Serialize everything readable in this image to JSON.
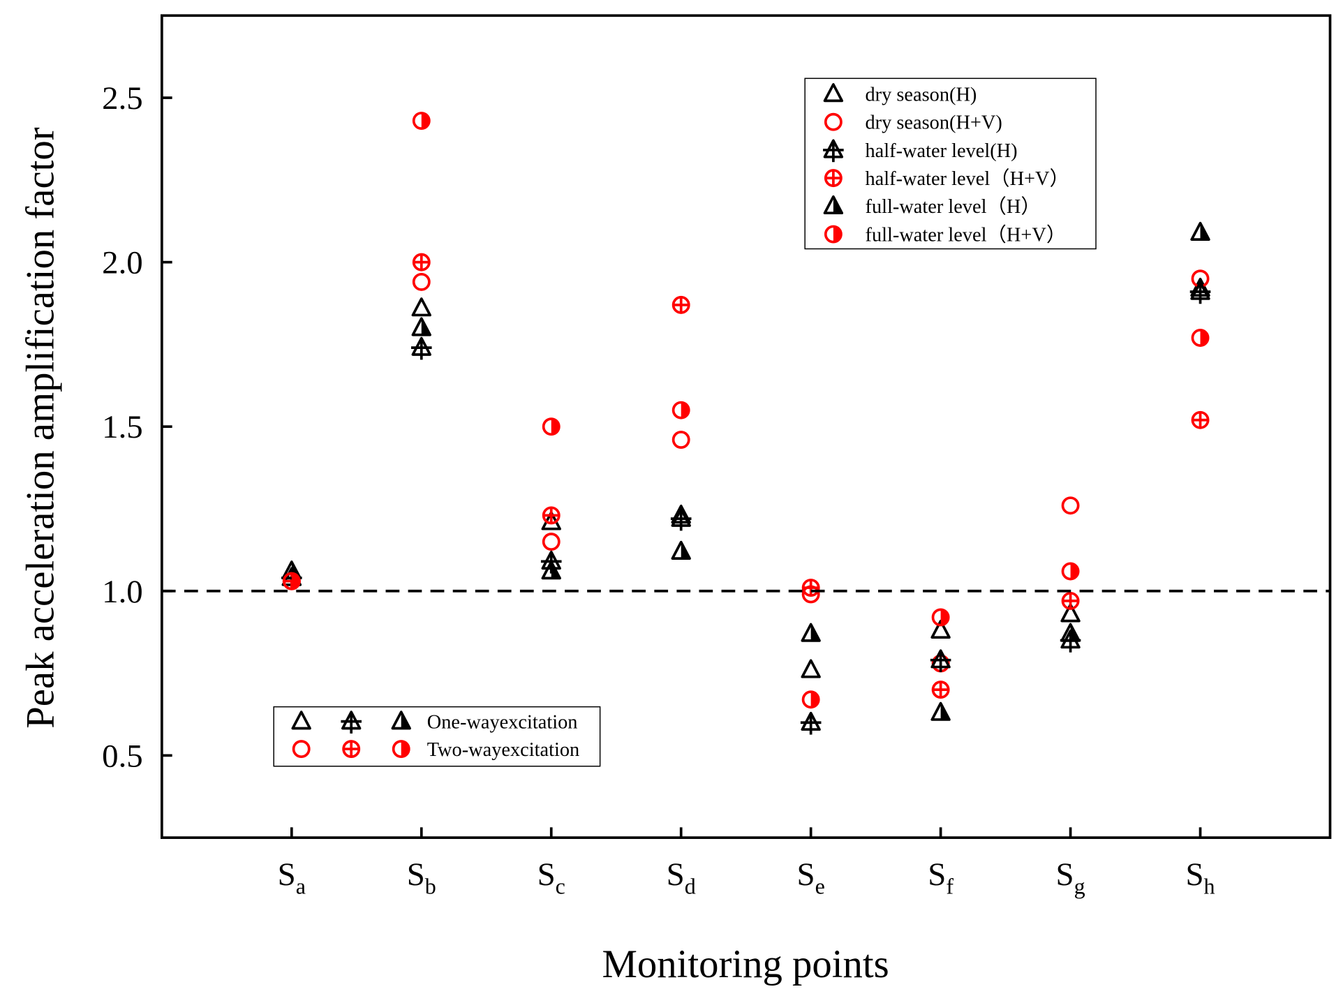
{
  "chart_data": {
    "type": "scatter",
    "title": "",
    "xlabel": "Monitoring points",
    "ylabel": "Peak acceleration amplification factor",
    "categories": [
      [
        "S",
        "a"
      ],
      [
        "S",
        "b"
      ],
      [
        "S",
        "c"
      ],
      [
        "S",
        "d"
      ],
      [
        "S",
        "e"
      ],
      [
        "S",
        "f"
      ],
      [
        "S",
        "g"
      ],
      [
        "S",
        "h"
      ]
    ],
    "ylim": [
      0.25,
      2.75
    ],
    "yticks": [
      0.5,
      1.0,
      1.5,
      2.0,
      2.5
    ],
    "ytick_labels": [
      "0.5",
      "1.0",
      "1.5",
      "2.0",
      "2.5"
    ],
    "reference_line": {
      "y": 1.0,
      "style": "dashed"
    },
    "grid": false,
    "legend_position": "top-right",
    "series": [
      {
        "name": "dry season(H)",
        "marker": "triangle-open",
        "color": "#000000",
        "values": [
          1.04,
          1.86,
          1.21,
          1.23,
          0.76,
          0.88,
          0.93,
          1.92
        ]
      },
      {
        "name": "dry season(H+V)",
        "marker": "circle-open",
        "color": "#ff0000",
        "values": [
          1.03,
          1.94,
          1.15,
          1.46,
          0.99,
          0.78,
          1.26,
          1.95
        ]
      },
      {
        "name": "half-water level(H)",
        "marker": "triangle-cross",
        "color": "#000000",
        "values": [
          1.04,
          1.74,
          1.09,
          1.22,
          0.6,
          0.79,
          0.85,
          1.91
        ]
      },
      {
        "name": "half-water level（H+V）",
        "marker": "circle-cross",
        "color": "#ff0000",
        "values": [
          1.03,
          2.0,
          1.23,
          1.87,
          1.01,
          0.7,
          0.97,
          1.52
        ]
      },
      {
        "name": "full-water level（H）",
        "marker": "triangle-half",
        "color": "#000000",
        "values": [
          1.06,
          1.8,
          1.06,
          1.12,
          0.87,
          0.63,
          0.87,
          2.09
        ]
      },
      {
        "name": "full-water level（H+V）",
        "marker": "circle-half",
        "color": "#ff0000",
        "values": [
          1.03,
          2.43,
          1.5,
          1.55,
          0.67,
          0.92,
          1.06,
          1.77
        ]
      }
    ],
    "secondary_legend": {
      "position": "bottom-left",
      "rows": [
        "One-wayexcitation",
        "Two-wayexcitation"
      ]
    }
  }
}
